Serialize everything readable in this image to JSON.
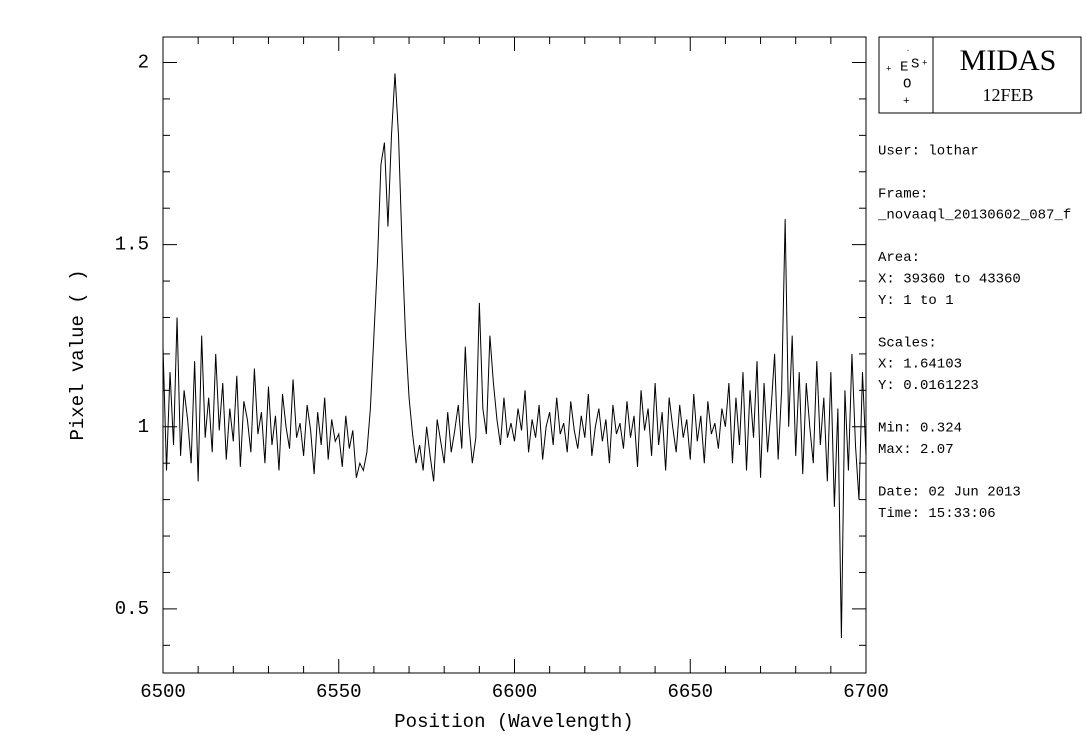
{
  "chart_data": {
    "type": "line",
    "xlabel": "Position (Wavelength)",
    "ylabel": "Pixel value ( )",
    "xlim": [
      6500,
      6700
    ],
    "ylim": [
      0.324,
      2.07
    ],
    "xticks": [
      6500,
      6550,
      6600,
      6650,
      6700
    ],
    "yticks": [
      0.5,
      1,
      1.5,
      2
    ],
    "xminorticks": [
      6510,
      6520,
      6530,
      6540,
      6560,
      6570,
      6580,
      6590,
      6610,
      6620,
      6630,
      6640,
      6660,
      6670,
      6680,
      6690
    ],
    "yminorticks": [
      0.4,
      0.6,
      0.7,
      0.8,
      0.9,
      1.1,
      1.2,
      1.3,
      1.4,
      1.6,
      1.7,
      1.8,
      1.9
    ],
    "color": "#000000",
    "x": [
      6500,
      6501,
      6502,
      6503,
      6504,
      6505,
      6506,
      6507,
      6508,
      6509,
      6510,
      6511,
      6512,
      6513,
      6514,
      6515,
      6516,
      6517,
      6518,
      6519,
      6520,
      6521,
      6522,
      6523,
      6524,
      6525,
      6526,
      6527,
      6528,
      6529,
      6530,
      6531,
      6532,
      6533,
      6534,
      6535,
      6536,
      6537,
      6538,
      6539,
      6540,
      6541,
      6542,
      6543,
      6544,
      6545,
      6546,
      6547,
      6548,
      6549,
      6550,
      6551,
      6552,
      6553,
      6554,
      6555,
      6556,
      6557,
      6558,
      6559,
      6560,
      6561,
      6562,
      6563,
      6564,
      6565,
      6566,
      6567,
      6568,
      6569,
      6570,
      6571,
      6572,
      6573,
      6574,
      6575,
      6576,
      6577,
      6578,
      6579,
      6580,
      6581,
      6582,
      6583,
      6584,
      6585,
      6586,
      6587,
      6588,
      6589,
      6590,
      6591,
      6592,
      6593,
      6594,
      6595,
      6596,
      6597,
      6598,
      6599,
      6600,
      6601,
      6602,
      6603,
      6604,
      6605,
      6606,
      6607,
      6608,
      6609,
      6610,
      6611,
      6612,
      6613,
      6614,
      6615,
      6616,
      6617,
      6618,
      6619,
      6620,
      6621,
      6622,
      6623,
      6624,
      6625,
      6626,
      6627,
      6628,
      6629,
      6630,
      6631,
      6632,
      6633,
      6634,
      6635,
      6636,
      6637,
      6638,
      6639,
      6640,
      6641,
      6642,
      6643,
      6644,
      6645,
      6646,
      6647,
      6648,
      6649,
      6650,
      6651,
      6652,
      6653,
      6654,
      6655,
      6656,
      6657,
      6658,
      6659,
      6660,
      6661,
      6662,
      6663,
      6664,
      6665,
      6666,
      6667,
      6668,
      6669,
      6670,
      6671,
      6672,
      6673,
      6674,
      6675,
      6676,
      6677,
      6678,
      6679,
      6680,
      6681,
      6682,
      6683,
      6684,
      6685,
      6686,
      6687,
      6688,
      6689,
      6690,
      6691,
      6692,
      6693,
      6694,
      6695,
      6696,
      6697,
      6698,
      6699,
      6700
    ],
    "values": [
      1.22,
      0.88,
      1.15,
      0.95,
      1.3,
      0.92,
      1.1,
      1.02,
      0.9,
      1.18,
      0.85,
      1.25,
      0.97,
      1.08,
      0.93,
      1.2,
      0.99,
      1.12,
      0.91,
      1.05,
      0.96,
      1.14,
      0.89,
      1.07,
      1.02,
      0.93,
      1.16,
      0.98,
      1.04,
      0.9,
      1.11,
      0.95,
      1.03,
      0.88,
      1.09,
      1.0,
      0.94,
      1.13,
      0.97,
      1.01,
      0.92,
      1.06,
      0.99,
      0.87,
      1.04,
      0.95,
      1.08,
      0.91,
      1.02,
      0.96,
      0.98,
      0.89,
      1.03,
      0.94,
      0.99,
      0.86,
      0.9,
      0.88,
      0.93,
      1.05,
      1.25,
      1.45,
      1.72,
      1.78,
      1.55,
      1.8,
      1.97,
      1.8,
      1.5,
      1.25,
      1.08,
      0.98,
      0.9,
      0.95,
      0.88,
      1.0,
      0.92,
      0.85,
      1.02,
      0.96,
      0.9,
      1.04,
      0.93,
      0.99,
      1.06,
      0.94,
      1.22,
      1.01,
      0.9,
      0.97,
      1.34,
      1.05,
      0.98,
      1.25,
      1.12,
      1.02,
      0.95,
      1.08,
      0.97,
      1.01,
      0.96,
      1.05,
      0.99,
      1.1,
      0.93,
      1.02,
      0.97,
      1.06,
      0.91,
      1.0,
      1.04,
      0.95,
      1.08,
      0.98,
      1.01,
      0.93,
      1.07,
      0.99,
      0.94,
      1.03,
      0.97,
      1.09,
      0.92,
      1.0,
      1.05,
      0.96,
      1.02,
      0.9,
      1.06,
      0.98,
      1.01,
      0.94,
      1.07,
      0.97,
      1.03,
      0.89,
      1.1,
      0.99,
      1.05,
      0.92,
      1.12,
      0.95,
      1.04,
      0.88,
      1.08,
      1.0,
      0.93,
      1.06,
      0.97,
      1.02,
      0.91,
      1.09,
      0.96,
      1.03,
      0.9,
      1.07,
      0.98,
      1.01,
      0.94,
      1.05,
      1.0,
      1.12,
      0.9,
      1.08,
      0.95,
      1.15,
      0.88,
      1.1,
      0.97,
      1.18,
      0.86,
      1.12,
      0.93,
      1.05,
      1.2,
      0.91,
      1.1,
      1.57,
      1.0,
      1.25,
      0.92,
      1.15,
      0.87,
      1.12,
      1.0,
      0.9,
      1.18,
      0.95,
      1.08,
      0.85,
      1.15,
      0.78,
      1.05,
      0.42,
      1.1,
      0.88,
      1.2,
      0.95,
      0.8,
      1.15,
      0.92
    ]
  },
  "panel": {
    "logo_letters": [
      "E",
      "S",
      "O"
    ],
    "system": "MIDAS",
    "version": "12FEB",
    "lines": [
      "User: lothar",
      "Frame:",
      "_novaaql_20130602_087_f",
      "Area:",
      "X: 39360 to 43360",
      "Y: 1 to 1",
      "Scales:",
      "X: 1.64103",
      "Y: 0.0161223",
      "Min: 0.324",
      "Max: 2.07",
      "Date: 02 Jun 2013",
      "Time: 15:33:06"
    ]
  }
}
